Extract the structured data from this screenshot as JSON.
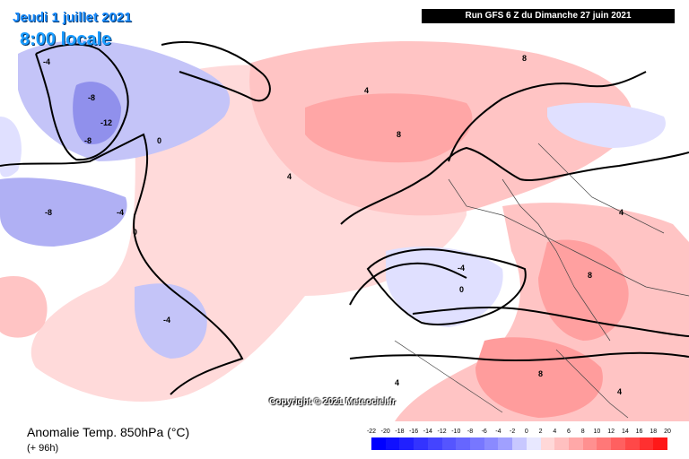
{
  "header": {
    "date": "Jeudi 1 juillet 2021",
    "time": "8:00 locale",
    "run": "Run GFS 6 Z du Dimanche 27 juin 2021"
  },
  "watermark": "Copyright © 2021 Meteociel.fr",
  "footer": {
    "parameter": "Anomalie Temp. 850hPa (°C)",
    "lead_time": "(+ 96h)"
  },
  "legend": {
    "ticks": [
      "-22",
      "-20",
      "-18",
      "-16",
      "-14",
      "-12",
      "-10",
      "-8",
      "-6",
      "-4",
      "-2",
      "0",
      "2",
      "4",
      "6",
      "8",
      "10",
      "12",
      "14",
      "16",
      "18",
      "20"
    ],
    "colors": [
      "#0000ff",
      "#1010ff",
      "#2020ff",
      "#3333ff",
      "#4444ff",
      "#5555ff",
      "#6666ff",
      "#7777ff",
      "#8a8aff",
      "#a0a0ff",
      "#c8c8ff",
      "#e8e8ff",
      "#ffd8d8",
      "#ffc0c0",
      "#ffa8a8",
      "#ff9090",
      "#ff7878",
      "#ff6060",
      "#ff4848",
      "#ff3030",
      "#ff1818",
      "#ff0000"
    ]
  },
  "colors": {
    "neutral": "#ffffff",
    "cold_weak": "#dfe0ff",
    "cold_mid": "#b6b6f8",
    "cold_strong": "#8e8ef0",
    "warm_weak": "#ffdada",
    "warm_mid": "#ffb8b8",
    "warm_strong": "#ff9a9a"
  },
  "contour_labels": [
    {
      "id": "gl-4",
      "text": "-4"
    },
    {
      "id": "gl-8",
      "text": "-8"
    },
    {
      "id": "gl-12",
      "text": "-12"
    },
    {
      "id": "gl-8b",
      "text": "-8"
    },
    {
      "id": "gl0",
      "text": "0"
    },
    {
      "id": "ca-4",
      "text": "-4"
    },
    {
      "id": "ca-8",
      "text": "-8"
    },
    {
      "id": "ca0",
      "text": "0"
    },
    {
      "id": "usa-4",
      "text": "-4"
    },
    {
      "id": "atl4",
      "text": "4"
    },
    {
      "id": "nsea8",
      "text": "8"
    },
    {
      "id": "arc8",
      "text": "8"
    },
    {
      "id": "nor4",
      "text": "4"
    },
    {
      "id": "fr-4",
      "text": "-4"
    },
    {
      "id": "fr0",
      "text": "0"
    },
    {
      "id": "bal8",
      "text": "8"
    },
    {
      "id": "rus4",
      "text": "4"
    },
    {
      "id": "med4",
      "text": "4"
    },
    {
      "id": "afr8",
      "text": "8"
    },
    {
      "id": "e4",
      "text": "4"
    }
  ]
}
